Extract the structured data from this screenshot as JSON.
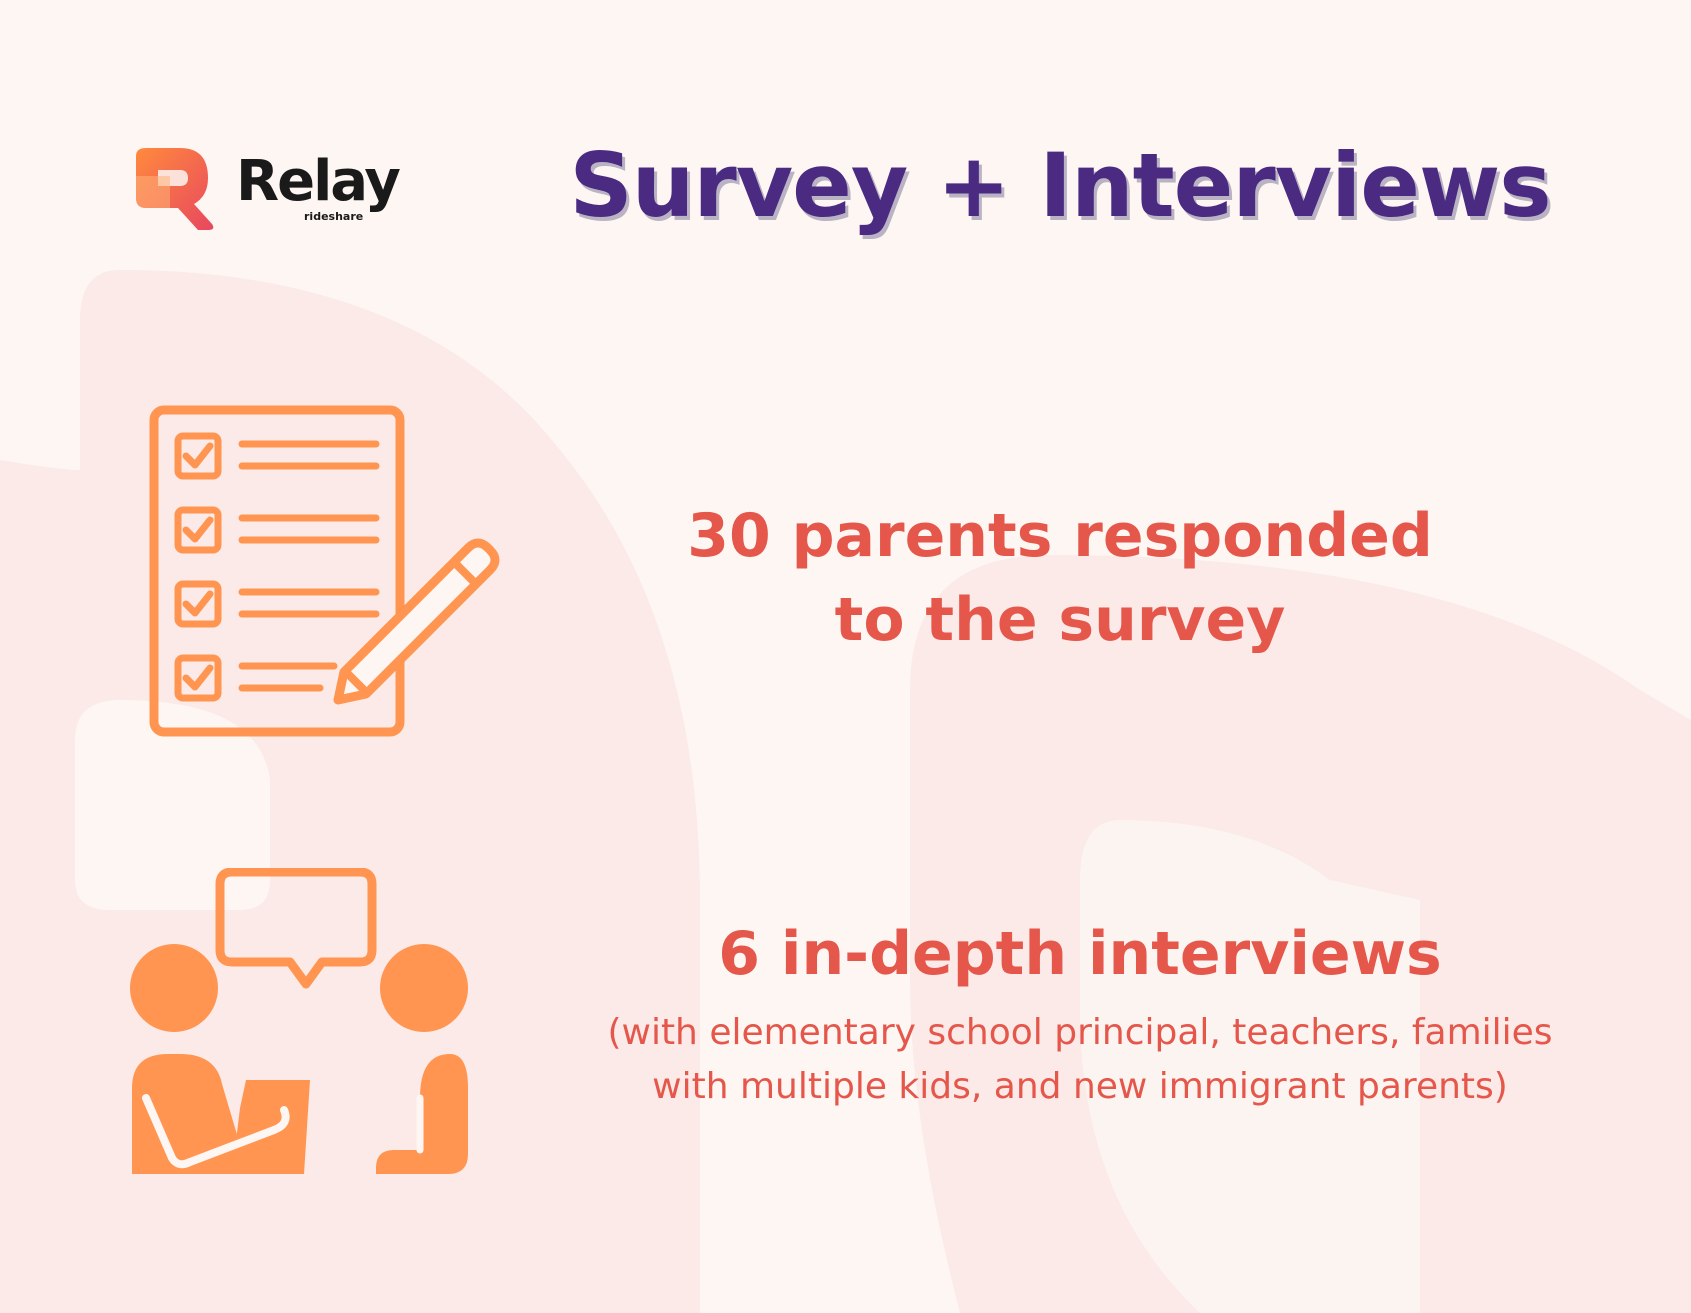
{
  "logo": {
    "name": "Relay",
    "tagline": "rideshare",
    "icon": "relay-logo-icon"
  },
  "title": "Survey + Interviews",
  "survey": {
    "icon": "checklist-pencil-icon",
    "line1": "30 parents responded",
    "line2": "to the survey"
  },
  "interviews": {
    "icon": "two-people-conversation-icon",
    "headline": "6 in-depth interviews",
    "detail_line1": "(with elementary school principal, teachers, families",
    "detail_line2": "with multiple kids, and new immigrant parents)"
  },
  "colors": {
    "background": "#fdf6f3",
    "title": "#4b2a82",
    "accent_text": "#e5574b",
    "icon_orange": "#ff9550",
    "logo_gradient_start": "#ff8a3d",
    "logo_gradient_end": "#e8475f"
  }
}
